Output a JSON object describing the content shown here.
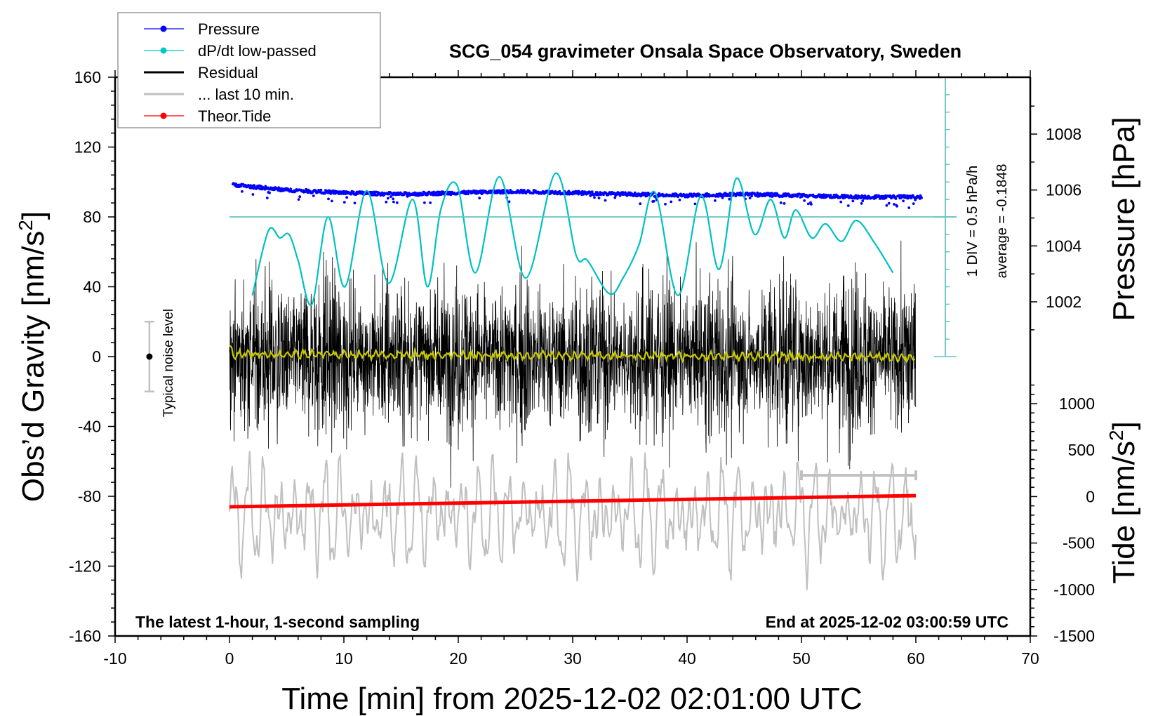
{
  "chart_data": {
    "type": "line",
    "title": "SCG_054 gravimeter Onsala Space Observatory, Sweden",
    "xlabel": "Time [min] from 2025-12-02 02:01:00 UTC",
    "ylabel_left": "Obs’d Gravity [nm/s",
    "ylabel_left_sup": "2",
    "ylabel_left_end": "]",
    "ylabel_right_pressure": "Pressure [hPa]",
    "ylabel_right_tide": "Tide [nm/s",
    "ylabel_right_tide_sup": "2",
    "ylabel_right_tide_end": "]",
    "xlim": [
      -10,
      70
    ],
    "ylim_left": [
      -160,
      160
    ],
    "ylim_pressure": [
      1000,
      1010
    ],
    "ylim_tide": [
      -1500,
      1500
    ],
    "x_ticks": [
      -10,
      0,
      10,
      20,
      30,
      40,
      50,
      60,
      70
    ],
    "y_ticks_left": [
      160,
      120,
      80,
      40,
      0,
      -40,
      -80,
      -120,
      -160
    ],
    "y_ticks_pressure": [
      1008,
      1006,
      1004,
      1002
    ],
    "y_ticks_tide": [
      1000,
      500,
      0,
      -500,
      -1000,
      -1500
    ],
    "grid": false,
    "legend_position": "top-left",
    "legend": [
      {
        "label": "Pressure",
        "color": "#0000ff",
        "marker": "dot"
      },
      {
        "label": "dP/dt low-passed",
        "color": "#00c8c8",
        "marker": "dot"
      },
      {
        "label": "Residual",
        "color": "#000000",
        "marker": "none"
      },
      {
        "label": "... last 10 min.",
        "color": "#c0c0c0",
        "marker": "none"
      },
      {
        "label": "Theor.Tide",
        "color": "#ff0000",
        "marker": "dot"
      }
    ],
    "annotations": {
      "bottom_left": "The latest 1-hour, 1-second sampling",
      "bottom_right": "End at 2025-12-02 03:00:59 UTC",
      "div_scale": "1 DIV = 0.5 hPa/h",
      "average": "average = -0.1848",
      "noise_label": "Typical noise level"
    },
    "noise_level": {
      "x": -7,
      "center": 0,
      "half_range": 20
    },
    "last10_bracket": {
      "x_start": 50,
      "x_end": 60,
      "y": -68
    },
    "series": [
      {
        "name": "Pressure",
        "axis": "pressure",
        "color": "#0000ff",
        "x": [
          0,
          5,
          10,
          15,
          20,
          25,
          30,
          35,
          40,
          45,
          50,
          55,
          60
        ],
        "values": [
          1006.2,
          1006.0,
          1005.9,
          1005.85,
          1005.9,
          1005.95,
          1005.9,
          1005.85,
          1005.8,
          1005.85,
          1005.8,
          1005.75,
          1005.75
        ]
      },
      {
        "name": "dP/dt low-passed",
        "axis": "dpdt_div",
        "color": "#00c0c0",
        "zero_line_gravity": 80,
        "x": [
          2,
          3.4,
          4.4,
          5.2,
          6.0,
          7.2,
          8.6,
          10.1,
          12.0,
          13.9,
          16.0,
          17.3,
          18.5,
          19.9,
          21.5,
          23.6,
          25.9,
          28.5,
          30.3,
          31.3,
          33.2,
          34.4,
          35.8,
          37.2,
          39.2,
          41.2,
          42.8,
          44.3,
          45.9,
          47.3,
          48.5,
          49.5,
          50.9,
          52.1,
          53.5,
          54.8,
          56.4,
          58.0
        ],
        "values": [
          -4.5,
          -0.8,
          -1.2,
          -1.0,
          -2.5,
          -5.0,
          -0.0,
          -4.0,
          1.5,
          -3.8,
          1.0,
          -4.0,
          0.5,
          1.8,
          -3.2,
          2.3,
          -3.5,
          2.5,
          -2.2,
          -2.5,
          -4.4,
          -3.5,
          -1.6,
          1.4,
          -4.5,
          1.2,
          -3.0,
          2.2,
          -1.0,
          1.0,
          -1.2,
          0.4,
          -1.2,
          -0.4,
          -1.4,
          -0.2,
          -1.5,
          -3.2
        ]
      },
      {
        "name": "Residual",
        "axis": "gravity",
        "color": "#000000",
        "x_range": [
          0,
          60
        ],
        "envelope": 55,
        "note": "1-second sampled residual, noise band roughly ±40 to ±70 nm/s2"
      },
      {
        "name": "Residual smoothed",
        "axis": "gravity",
        "color": "#c8c800",
        "x_range": [
          0,
          60
        ],
        "values_approx": [
          2,
          1,
          1,
          0.5,
          0,
          0,
          -1
        ]
      },
      {
        "name": "... last 10 min.",
        "axis": "tide",
        "color": "#c0c0c0",
        "x_range": [
          0,
          60
        ],
        "amplitude": 900
      },
      {
        "name": "Theor.Tide",
        "axis": "tide",
        "color": "#ff0000",
        "x": [
          0,
          10,
          20,
          30,
          40,
          50,
          60
        ],
        "values": [
          -110,
          -90,
          -70,
          -50,
          -30,
          -10,
          10
        ]
      }
    ]
  }
}
